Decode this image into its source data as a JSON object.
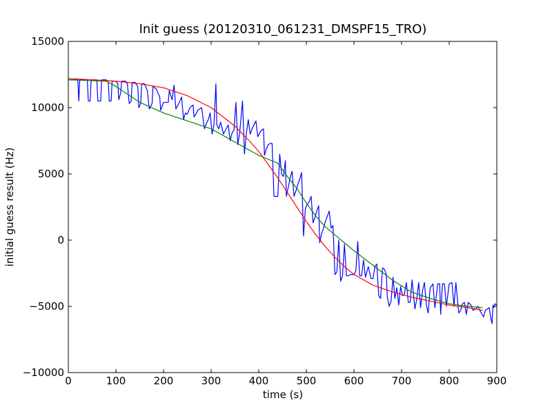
{
  "chart_data": {
    "type": "line",
    "title": "Init guess (20120310_061231_DMSPF15_TRO)",
    "xlabel": "time (s)",
    "ylabel": "initial guess result (Hz)",
    "xlim": [
      0,
      900
    ],
    "ylim": [
      -10000,
      15000
    ],
    "xticks": [
      0,
      100,
      200,
      300,
      400,
      500,
      600,
      700,
      800,
      900
    ],
    "yticks": [
      -10000,
      -5000,
      0,
      5000,
      10000,
      15000
    ],
    "xtick_labels": [
      "0",
      "100",
      "200",
      "300",
      "400",
      "500",
      "600",
      "700",
      "800",
      "900"
    ],
    "ytick_labels": [
      "−10000",
      "−5000",
      "0",
      "5000",
      "10000",
      "15000"
    ],
    "grid": false,
    "legend": false,
    "series": [
      {
        "color": "#0000ff",
        "points": [
          [
            0,
            12100
          ],
          [
            10,
            12100
          ],
          [
            20,
            12100
          ],
          [
            22,
            10500
          ],
          [
            24,
            12100
          ],
          [
            40,
            12100
          ],
          [
            42,
            10500
          ],
          [
            46,
            10500
          ],
          [
            48,
            12100
          ],
          [
            60,
            12100
          ],
          [
            62,
            10500
          ],
          [
            68,
            10500
          ],
          [
            70,
            12100
          ],
          [
            80,
            12100
          ],
          [
            84,
            11900
          ],
          [
            86,
            10500
          ],
          [
            90,
            10500
          ],
          [
            92,
            12000
          ],
          [
            100,
            12000
          ],
          [
            104,
            11800
          ],
          [
            106,
            10600
          ],
          [
            110,
            11100
          ],
          [
            112,
            12000
          ],
          [
            120,
            12000
          ],
          [
            124,
            11800
          ],
          [
            128,
            10300
          ],
          [
            132,
            10500
          ],
          [
            134,
            11900
          ],
          [
            140,
            11900
          ],
          [
            146,
            11600
          ],
          [
            148,
            10000
          ],
          [
            152,
            10300
          ],
          [
            154,
            11800
          ],
          [
            160,
            11800
          ],
          [
            166,
            11300
          ],
          [
            170,
            9900
          ],
          [
            176,
            10300
          ],
          [
            178,
            11600
          ],
          [
            185,
            11400
          ],
          [
            192,
            10800
          ],
          [
            194,
            9800
          ],
          [
            200,
            10400
          ],
          [
            210,
            10400
          ],
          [
            212,
            11300
          ],
          [
            218,
            10600
          ],
          [
            222,
            11700
          ],
          [
            226,
            9900
          ],
          [
            232,
            10300
          ],
          [
            238,
            10800
          ],
          [
            242,
            9100
          ],
          [
            246,
            9600
          ],
          [
            250,
            9500
          ],
          [
            254,
            9900
          ],
          [
            258,
            10100
          ],
          [
            262,
            10200
          ],
          [
            264,
            9300
          ],
          [
            268,
            9500
          ],
          [
            272,
            9800
          ],
          [
            276,
            9900
          ],
          [
            280,
            10000
          ],
          [
            286,
            8400
          ],
          [
            290,
            8800
          ],
          [
            294,
            9100
          ],
          [
            298,
            9600
          ],
          [
            302,
            8000
          ],
          [
            306,
            8700
          ],
          [
            310,
            11800
          ],
          [
            312,
            8700
          ],
          [
            316,
            8400
          ],
          [
            320,
            8900
          ],
          [
            326,
            8000
          ],
          [
            330,
            8300
          ],
          [
            336,
            8700
          ],
          [
            340,
            7500
          ],
          [
            344,
            8100
          ],
          [
            348,
            8300
          ],
          [
            352,
            10400
          ],
          [
            356,
            7200
          ],
          [
            360,
            8100
          ],
          [
            366,
            10500
          ],
          [
            370,
            6500
          ],
          [
            374,
            8100
          ],
          [
            378,
            9100
          ],
          [
            382,
            8000
          ],
          [
            386,
            8400
          ],
          [
            394,
            9000
          ],
          [
            398,
            7800
          ],
          [
            402,
            8100
          ],
          [
            406,
            8300
          ],
          [
            410,
            8400
          ],
          [
            412,
            6400
          ],
          [
            416,
            6900
          ],
          [
            420,
            7200
          ],
          [
            424,
            7300
          ],
          [
            428,
            7300
          ],
          [
            432,
            3300
          ],
          [
            436,
            3300
          ],
          [
            440,
            3300
          ],
          [
            444,
            6500
          ],
          [
            448,
            5000
          ],
          [
            452,
            4800
          ],
          [
            456,
            6000
          ],
          [
            458,
            3300
          ],
          [
            462,
            4000
          ],
          [
            466,
            4700
          ],
          [
            470,
            5200
          ],
          [
            474,
            3300
          ],
          [
            478,
            3700
          ],
          [
            482,
            4200
          ],
          [
            486,
            4600
          ],
          [
            490,
            5100
          ],
          [
            494,
            300
          ],
          [
            498,
            2400
          ],
          [
            502,
            2700
          ],
          [
            506,
            2900
          ],
          [
            510,
            3300
          ],
          [
            514,
            1300
          ],
          [
            518,
            1700
          ],
          [
            522,
            2200
          ],
          [
            526,
            2600
          ],
          [
            528,
            -200
          ],
          [
            532,
            500
          ],
          [
            536,
            900
          ],
          [
            540,
            1400
          ],
          [
            544,
            1800
          ],
          [
            548,
            2200
          ],
          [
            552,
            900
          ],
          [
            556,
            1100
          ],
          [
            560,
            -2600
          ],
          [
            564,
            -2400
          ],
          [
            568,
            0
          ],
          [
            572,
            -3100
          ],
          [
            576,
            -2700
          ],
          [
            580,
            -300
          ],
          [
            584,
            -2700
          ],
          [
            588,
            -2700
          ],
          [
            592,
            -2600
          ],
          [
            596,
            -2600
          ],
          [
            600,
            -2600
          ],
          [
            604,
            -2300
          ],
          [
            608,
            -100
          ],
          [
            612,
            -2700
          ],
          [
            616,
            -2700
          ],
          [
            620,
            -1500
          ],
          [
            624,
            -2800
          ],
          [
            630,
            -2000
          ],
          [
            636,
            -2900
          ],
          [
            640,
            -2900
          ],
          [
            644,
            -2000
          ],
          [
            648,
            -1800
          ],
          [
            652,
            -4200
          ],
          [
            656,
            -4400
          ],
          [
            660,
            -2100
          ],
          [
            664,
            -2200
          ],
          [
            668,
            -2600
          ],
          [
            670,
            -4300
          ],
          [
            674,
            -5000
          ],
          [
            678,
            -4600
          ],
          [
            682,
            -2800
          ],
          [
            686,
            -4400
          ],
          [
            690,
            -3600
          ],
          [
            694,
            -4900
          ],
          [
            698,
            -3500
          ],
          [
            702,
            -4200
          ],
          [
            706,
            -4100
          ],
          [
            710,
            -3200
          ],
          [
            714,
            -4700
          ],
          [
            718,
            -4700
          ],
          [
            722,
            -3000
          ],
          [
            728,
            -5200
          ],
          [
            732,
            -4400
          ],
          [
            736,
            -3200
          ],
          [
            740,
            -5100
          ],
          [
            744,
            -3800
          ],
          [
            748,
            -3200
          ],
          [
            752,
            -4900
          ],
          [
            756,
            -5500
          ],
          [
            760,
            -3600
          ],
          [
            766,
            -3300
          ],
          [
            770,
            -5100
          ],
          [
            776,
            -3300
          ],
          [
            780,
            -3300
          ],
          [
            782,
            -5600
          ],
          [
            786,
            -3300
          ],
          [
            790,
            -3300
          ],
          [
            794,
            -5000
          ],
          [
            800,
            -3300
          ],
          [
            806,
            -3200
          ],
          [
            810,
            -5000
          ],
          [
            814,
            -3200
          ],
          [
            820,
            -5500
          ],
          [
            824,
            -5300
          ],
          [
            828,
            -4800
          ],
          [
            832,
            -4700
          ],
          [
            836,
            -5600
          ],
          [
            840,
            -4700
          ],
          [
            846,
            -4900
          ],
          [
            850,
            -5300
          ],
          [
            856,
            -5200
          ],
          [
            860,
            -5000
          ],
          [
            866,
            -5400
          ],
          [
            872,
            -5800
          ],
          [
            876,
            -5300
          ],
          [
            880,
            -5200
          ],
          [
            884,
            -5100
          ],
          [
            888,
            -6000
          ],
          [
            890,
            -6300
          ],
          [
            892,
            -4900
          ],
          [
            894,
            -5100
          ],
          [
            896,
            -4800
          ],
          [
            900,
            -4900
          ]
        ]
      },
      {
        "color": "#008000",
        "points": [
          [
            0,
            12100
          ],
          [
            80,
            12000
          ],
          [
            100,
            11600
          ],
          [
            150,
            10400
          ],
          [
            200,
            9600
          ],
          [
            250,
            9000
          ],
          [
            300,
            8400
          ],
          [
            350,
            7400
          ],
          [
            400,
            6400
          ],
          [
            440,
            5800
          ],
          [
            460,
            4800
          ],
          [
            480,
            3900
          ],
          [
            500,
            2800
          ],
          [
            520,
            1800
          ],
          [
            540,
            1000
          ],
          [
            560,
            400
          ],
          [
            600,
            -800
          ],
          [
            640,
            -1900
          ],
          [
            680,
            -3000
          ],
          [
            720,
            -3900
          ],
          [
            760,
            -4400
          ],
          [
            800,
            -4800
          ],
          [
            840,
            -5000
          ],
          [
            870,
            -5100
          ]
        ]
      },
      {
        "color": "#ff0000",
        "points": [
          [
            0,
            12200
          ],
          [
            50,
            12100
          ],
          [
            100,
            12000
          ],
          [
            150,
            11800
          ],
          [
            200,
            11500
          ],
          [
            250,
            10900
          ],
          [
            300,
            10000
          ],
          [
            350,
            8600
          ],
          [
            380,
            7500
          ],
          [
            400,
            6700
          ],
          [
            420,
            5700
          ],
          [
            440,
            4700
          ],
          [
            460,
            3600
          ],
          [
            480,
            2500
          ],
          [
            500,
            1400
          ],
          [
            520,
            400
          ],
          [
            540,
            -500
          ],
          [
            560,
            -1300
          ],
          [
            580,
            -2000
          ],
          [
            600,
            -2600
          ],
          [
            640,
            -3400
          ],
          [
            680,
            -3900
          ],
          [
            720,
            -4300
          ],
          [
            760,
            -4600
          ],
          [
            800,
            -4900
          ],
          [
            840,
            -5100
          ],
          [
            870,
            -5300
          ]
        ]
      }
    ]
  }
}
